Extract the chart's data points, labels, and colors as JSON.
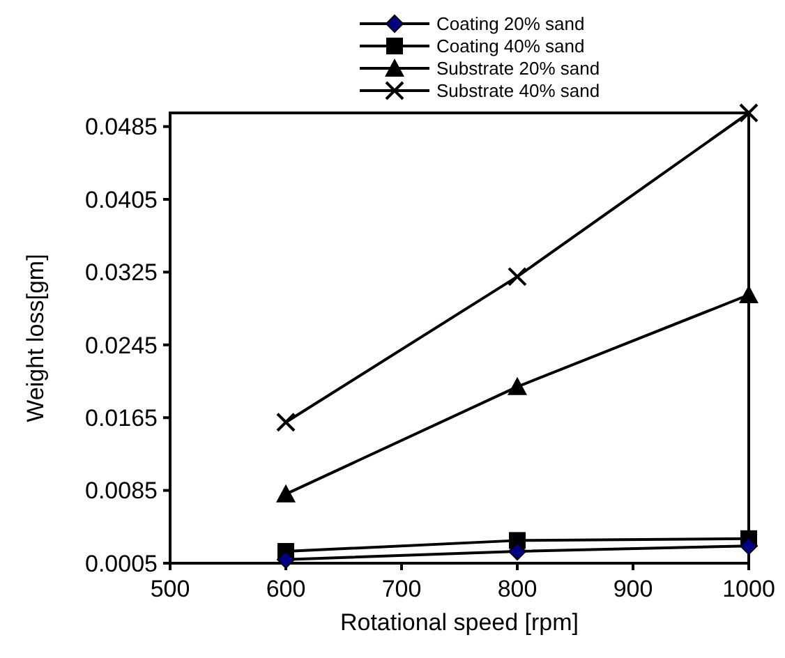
{
  "chart_data": {
    "type": "line",
    "xlabel": "Rotational speed [rpm]",
    "ylabel": "Weight loss[gm]",
    "x": [
      600,
      800,
      1000
    ],
    "series": [
      {
        "name": "Coating 20% sand",
        "color": "#000000",
        "marker": "diamond",
        "values": [
          0.0009,
          0.0018,
          0.0024
        ]
      },
      {
        "name": "Coating 40% sand",
        "color": "#000000",
        "marker": "square",
        "values": [
          0.0018,
          0.003,
          0.0032
        ]
      },
      {
        "name": "Substrate 20% sand",
        "color": "#000000",
        "marker": "triangle",
        "values": [
          0.0081,
          0.0199,
          0.03
        ]
      },
      {
        "name": "Substrate 40% sand",
        "color": "#000000",
        "marker": "cross",
        "values": [
          0.016,
          0.032,
          0.05
        ]
      }
    ],
    "xlim": [
      500,
      1000
    ],
    "xticks": [
      500,
      600,
      700,
      800,
      900,
      1000
    ],
    "ylim": [
      0.0005,
      0.05
    ],
    "yticks": [
      0.0005,
      0.0085,
      0.0165,
      0.0245,
      0.0325,
      0.0405,
      0.0485
    ],
    "grid": false,
    "legend": "top"
  }
}
